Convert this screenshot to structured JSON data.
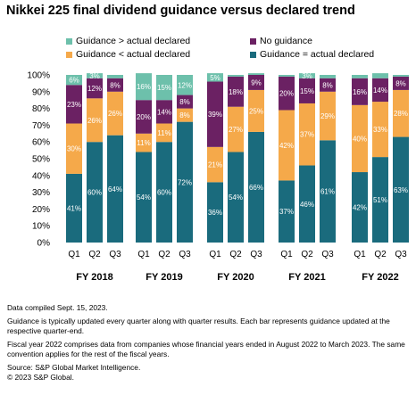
{
  "chart_data": {
    "type": "bar",
    "stacked": true,
    "title": "Nikkei 225 final dividend guidance versus declared trend",
    "ylim": [
      0,
      100
    ],
    "y_ticks": [
      "0%",
      "10%",
      "20%",
      "30%",
      "40%",
      "50%",
      "60%",
      "70%",
      "80%",
      "90%",
      "100%"
    ],
    "groups": [
      "FY 2018",
      "FY 2019",
      "FY 2020",
      "FY 2021",
      "FY 2022"
    ],
    "quarters": [
      [
        "Q1",
        "Q2",
        "Q3"
      ],
      [
        "Q1",
        "Q2",
        "Q3"
      ],
      [
        "Q1",
        "Q2",
        "Q3"
      ],
      [
        "Q1",
        "Q2",
        "Q3"
      ],
      [
        "Q1",
        "Q2",
        "Q3"
      ]
    ],
    "x": [
      "FY2018 Q1",
      "FY2018 Q2",
      "FY2018 Q3",
      "FY2019 Q1",
      "FY2019 Q2",
      "FY2019 Q3",
      "FY2020 Q1",
      "FY2020 Q2",
      "FY2020 Q3",
      "FY2021 Q1",
      "FY2021 Q2",
      "FY2021 Q3",
      "FY2022 Q1",
      "FY2022 Q2",
      "FY2022 Q3"
    ],
    "series": [
      {
        "name": "Guidance = actual declared",
        "color": "#1a6b7d",
        "values": [
          41,
          60,
          64,
          54,
          60,
          72,
          36,
          54,
          66,
          37,
          46,
          61,
          42,
          51,
          63
        ],
        "labels": [
          "41%",
          "60%",
          "64%",
          "54%",
          "60%",
          "72%",
          "36%",
          "54%",
          "66%",
          "37%",
          "46%",
          "61%",
          "42%",
          "51%",
          "63%"
        ]
      },
      {
        "name": "Guidance < actual declared",
        "color": "#f5a94a",
        "values": [
          30,
          26,
          26,
          11,
          11,
          8,
          21,
          27,
          25,
          42,
          37,
          29,
          40,
          33,
          28
        ],
        "labels": [
          "30%",
          "26%",
          "26%",
          "11%",
          "11%",
          "8%",
          "21%",
          "27%",
          "25%",
          "42%",
          "37%",
          "29%",
          "40%",
          "33%",
          "28%"
        ]
      },
      {
        "name": "No guidance",
        "color": "#6b2163",
        "values": [
          23,
          12,
          8,
          20,
          14,
          8,
          39,
          18,
          9,
          20,
          15,
          8,
          16,
          14,
          8
        ],
        "labels": [
          "23%",
          "12%",
          "8%",
          "20%",
          "14%",
          "8%",
          "39%",
          "18%",
          "9%",
          "20%",
          "15%",
          "8%",
          "16%",
          "14%",
          "8%"
        ]
      },
      {
        "name": "Guidance > actual declared",
        "color": "#6dc0ab",
        "values": [
          6,
          3,
          2,
          16,
          15,
          12,
          5,
          1,
          1,
          1,
          3,
          2,
          2,
          3,
          1
        ],
        "labels": [
          "6%",
          "3%",
          "",
          "16%",
          "15%",
          "12%",
          "5%",
          "",
          "",
          "",
          "3%",
          "",
          "",
          "",
          ""
        ]
      }
    ]
  },
  "legend": [
    {
      "name": "Guidance > actual declared",
      "color": "#6dc0ab"
    },
    {
      "name": "No guidance",
      "color": "#6b2163"
    },
    {
      "name": "Guidance < actual declared",
      "color": "#f5a94a"
    },
    {
      "name": "Guidance = actual declared",
      "color": "#1a6b7d"
    }
  ],
  "notes": [
    "Data compiled Sept. 15, 2023.",
    "Guidance is typically updated every quarter along with quarter results. Each bar represents guidance updated at the respective quarter-end.",
    "Fiscal year 2022 comprises data from companies whose financial years ended in August 2022 to March 2023. The same convention applies for the rest of the fiscal years.",
    "Source: S&P Global Market Intelligence.",
    "© 2023 S&P Global."
  ]
}
